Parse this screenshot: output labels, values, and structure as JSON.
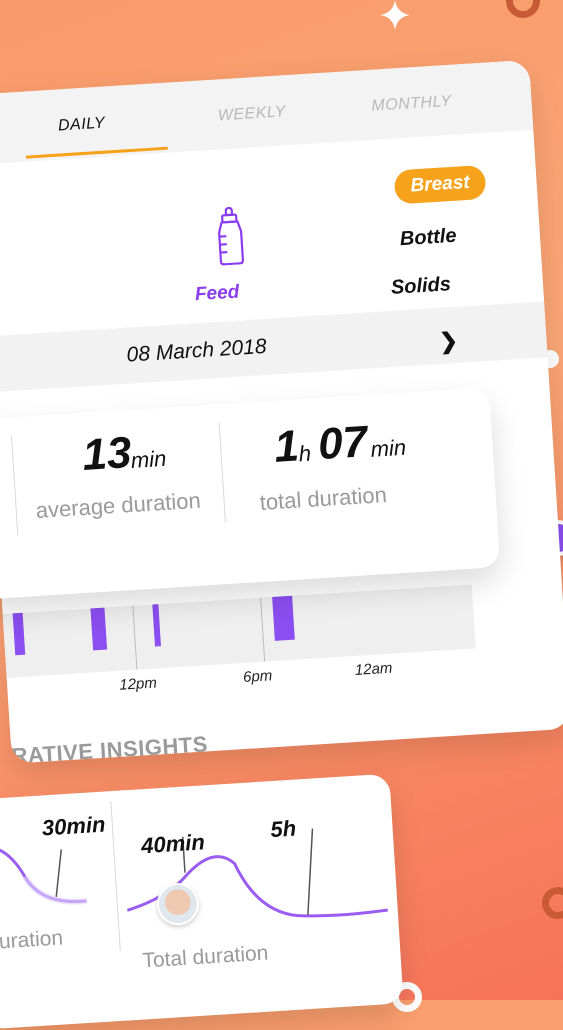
{
  "tabs": [
    {
      "label": "DAILY",
      "active": true
    },
    {
      "label": "WEEKLY",
      "active": false
    },
    {
      "label": "MONTHLY",
      "active": false
    }
  ],
  "feed": {
    "category_label": "Feed",
    "icon": "baby-bottle-icon",
    "options": [
      "Breast",
      "Bottle",
      "Solids"
    ],
    "selected": "Breast"
  },
  "date_nav": {
    "date": "08 March 2018",
    "next_icon": "chevron-right-icon"
  },
  "stats": {
    "average": {
      "value": "13",
      "unit": "min",
      "caption": "average duration"
    },
    "total": {
      "hours": "1",
      "hours_unit": "h",
      "minutes": "07",
      "minutes_unit": "min",
      "caption": "total duration"
    }
  },
  "timeline": {
    "labels": [
      "12pm",
      "6pm",
      "12am"
    ]
  },
  "insights": {
    "title": "RATIVE INSIGHTS",
    "left": {
      "value": "30min",
      "caption": "uration"
    },
    "right": {
      "value_a": "40min",
      "value_b": "5h",
      "caption": "Total duration"
    }
  },
  "colors": {
    "accent_orange": "#f7a21b",
    "accent_purple": "#8a3cf0",
    "background_top": "#f89a6a",
    "background_bottom": "#f5735a"
  }
}
